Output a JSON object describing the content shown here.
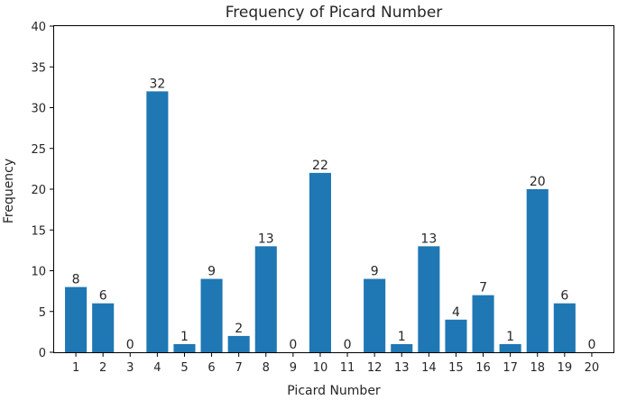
{
  "chart_data": {
    "type": "bar",
    "title": "Frequency of Picard Number",
    "xlabel": "Picard Number",
    "ylabel": "Frequency",
    "categories": [
      "1",
      "2",
      "3",
      "4",
      "5",
      "6",
      "7",
      "8",
      "9",
      "10",
      "11",
      "12",
      "13",
      "14",
      "15",
      "16",
      "17",
      "18",
      "19",
      "20"
    ],
    "values": [
      8,
      6,
      0,
      32,
      1,
      9,
      2,
      13,
      0,
      22,
      0,
      9,
      1,
      13,
      4,
      7,
      1,
      20,
      6,
      0
    ],
    "ylim": [
      0,
      40
    ],
    "yticks": [
      0,
      5,
      10,
      15,
      20,
      25,
      30,
      35,
      40
    ],
    "grid": false,
    "bar_color": "#1f77b4",
    "show_value_labels": true
  }
}
